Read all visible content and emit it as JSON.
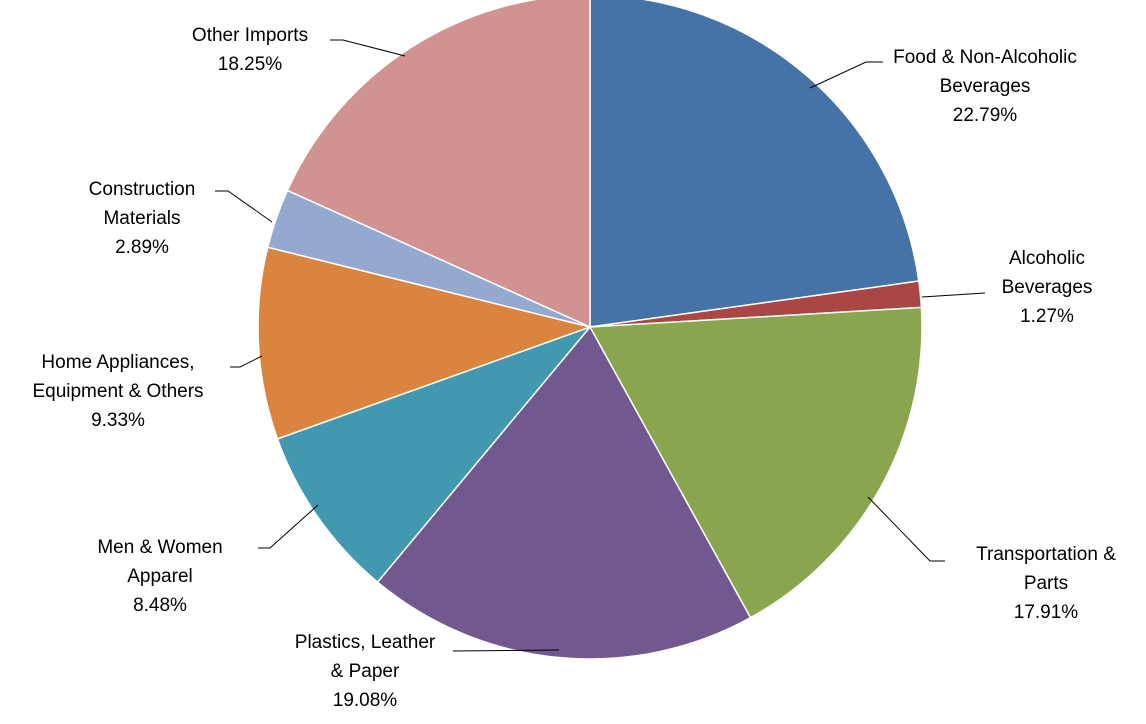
{
  "chart_data": {
    "type": "pie",
    "start_angle_deg": 0,
    "direction": "clockwise",
    "slices": [
      {
        "label_lines": [
          "Food & Non-Alcoholic",
          "Beverages"
        ],
        "value_label": "22.79%",
        "value": 22.79,
        "color": "#4572A7"
      },
      {
        "label_lines": [
          "Alcoholic",
          "Beverages"
        ],
        "value_label": "1.27%",
        "value": 1.27,
        "color": "#AA4643"
      },
      {
        "label_lines": [
          "Transportation &",
          "Parts"
        ],
        "value_label": "17.91%",
        "value": 17.91,
        "color": "#89A54E"
      },
      {
        "label_lines": [
          "Plastics, Leather",
          "& Paper"
        ],
        "value_label": "19.08%",
        "value": 19.08,
        "color": "#71588F"
      },
      {
        "label_lines": [
          "Men & Women",
          "Apparel"
        ],
        "value_label": "8.48%",
        "value": 8.48,
        "color": "#4198AF"
      },
      {
        "label_lines": [
          "Home Appliances,",
          "Equipment & Others"
        ],
        "value_label": "9.33%",
        "value": 9.33,
        "color": "#DB843D"
      },
      {
        "label_lines": [
          "Construction",
          "Materials"
        ],
        "value_label": "2.89%",
        "value": 2.89,
        "color": "#93A9CF"
      },
      {
        "label_lines": [
          "Other Imports"
        ],
        "value_label": "18.25%",
        "value": 18.25,
        "color": "#D19392"
      }
    ],
    "legend": "none"
  }
}
